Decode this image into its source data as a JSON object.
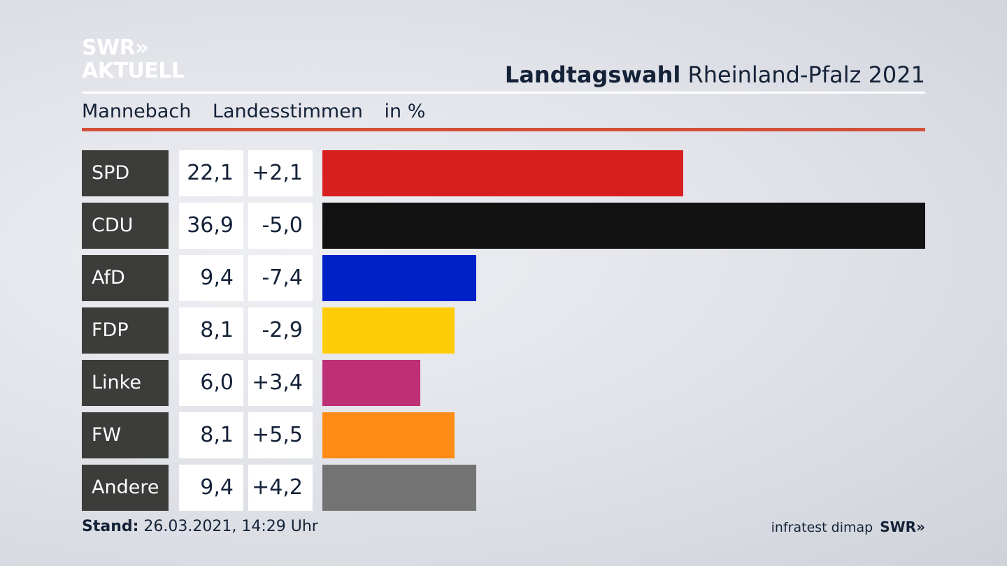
{
  "header": {
    "logo_line1": "SWR»",
    "logo_line2": "AKTUELL",
    "title_bold": "Landtagswahl",
    "title_rest": "Rheinland-Pfalz 2021"
  },
  "subheader": {
    "place": "Mannebach",
    "metric": "Landesstimmen",
    "unit": "in %"
  },
  "chart_data": {
    "type": "bar",
    "orientation": "horizontal",
    "categories": [
      "SPD",
      "CDU",
      "AfD",
      "FDP",
      "Linke",
      "FW",
      "Andere"
    ],
    "values_label": [
      "22,1",
      "36,9",
      "9,4",
      "8,1",
      "6,0",
      "8,1",
      "9,4"
    ],
    "values": [
      22.1,
      36.9,
      9.4,
      8.1,
      6.0,
      8.1,
      9.4
    ],
    "changes_label": [
      "+2,1",
      "-5,0",
      "-7,4",
      "-2,9",
      "+3,4",
      "+5,5",
      "+4,2"
    ],
    "changes": [
      2.1,
      -5.0,
      -7.4,
      -2.9,
      3.4,
      5.5,
      4.2
    ],
    "colors": [
      "#d71f1f",
      "#121212",
      "#0021c8",
      "#ffcc09",
      "#bd3075",
      "#ff8c16",
      "#737373"
    ],
    "xlim": [
      0,
      36.9
    ],
    "grid": false
  },
  "footer": {
    "stand_label": "Stand:",
    "stand_value": "26.03.2021, 14:29 Uhr",
    "source": "infratest dimap",
    "brand": "SWR»"
  }
}
